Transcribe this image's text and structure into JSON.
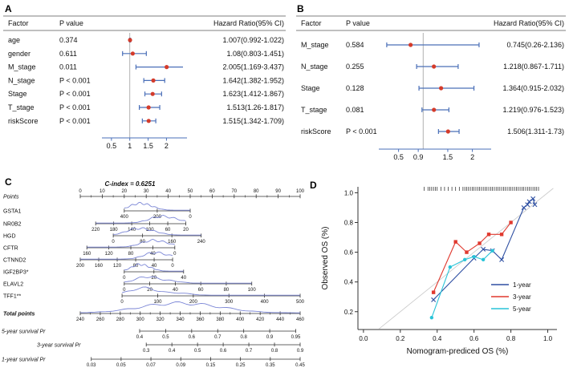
{
  "figure": {
    "panel_labels": {
      "a": "A",
      "b": "B",
      "c": "C",
      "d": "D"
    }
  },
  "style": {
    "ci_color": "#4a6fb8",
    "dot_color": "#d43b2a",
    "curve_color": "#7b86d6",
    "axis_color": "#333333",
    "ref_color": "#aaaaaa",
    "diag_color": "#cccccc"
  },
  "chart_data": [
    {
      "id": "A",
      "type": "forest",
      "columns": {
        "factor": "Factor",
        "p": "P value",
        "hr": "Hazard Ratio(95% CI)"
      },
      "rows": [
        {
          "factor": "age",
          "p": "0.374",
          "hr_text": "1.007(0.992-1.022)",
          "hr": 1.007,
          "lo": 0.992,
          "hi": 1.022
        },
        {
          "factor": "gender",
          "p": "0.611",
          "hr_text": "1.08(0.803-1.451)",
          "hr": 1.08,
          "lo": 0.803,
          "hi": 1.451
        },
        {
          "factor": "M_stage",
          "p": "0.011",
          "hr_text": "2.005(1.169-3.437)",
          "hr": 2.005,
          "lo": 1.169,
          "hi": 3.437
        },
        {
          "factor": "N_stage",
          "p": "P < 0.001",
          "hr_text": "1.642(1.382-1.952)",
          "hr": 1.642,
          "lo": 1.382,
          "hi": 1.952
        },
        {
          "factor": "Stage",
          "p": "P < 0.001",
          "hr_text": "1.623(1.412-1.867)",
          "hr": 1.623,
          "lo": 1.412,
          "hi": 1.867
        },
        {
          "factor": "T_stage",
          "p": "P < 0.001",
          "hr_text": "1.513(1.26-1.817)",
          "hr": 1.513,
          "lo": 1.26,
          "hi": 1.817
        },
        {
          "factor": "riskScore",
          "p": "P < 0.001",
          "hr_text": "1.515(1.342-1.709)",
          "hr": 1.515,
          "lo": 1.342,
          "hi": 1.709
        }
      ],
      "x_ticks": [
        {
          "label": "0.5",
          "v": 0.5
        },
        {
          "label": "1",
          "v": 1
        },
        {
          "label": "1.5",
          "v": 1.5
        },
        {
          "label": "2",
          "v": 2
        }
      ],
      "xlim": [
        0.35,
        2.45
      ],
      "ref": 1
    },
    {
      "id": "B",
      "type": "forest",
      "columns": {
        "factor": "Factor",
        "p": "P value",
        "hr": "Hazard Ratio(95% CI)"
      },
      "rows": [
        {
          "factor": "M_stage",
          "p": "0.584",
          "hr_text": "0.745(0.26-2.136)",
          "hr": 0.745,
          "lo": 0.26,
          "hi": 2.136
        },
        {
          "factor": "N_stage",
          "p": "0.255",
          "hr_text": "1.218(0.867-1.711)",
          "hr": 1.218,
          "lo": 0.867,
          "hi": 1.711
        },
        {
          "factor": "Stage",
          "p": "0.128",
          "hr_text": "1.364(0.915-2.032)",
          "hr": 1.364,
          "lo": 0.915,
          "hi": 2.032
        },
        {
          "factor": "T_stage",
          "p": "0.081",
          "hr_text": "1.219(0.976-1.523)",
          "hr": 1.219,
          "lo": 0.976,
          "hi": 1.523
        },
        {
          "factor": "riskScore",
          "p": "P < 0.001",
          "hr_text": "1.506(1.311-1.73)",
          "hr": 1.506,
          "lo": 1.311,
          "hi": 1.73
        }
      ],
      "x_ticks": [
        {
          "label": "0.5",
          "v": 0.5
        },
        {
          "label": "0.9",
          "v": 0.9
        },
        {
          "label": "1.5",
          "v": 1.5
        },
        {
          "label": "2",
          "v": 2
        }
      ],
      "xlim": [
        0.18,
        2.3
      ],
      "ref": 1
    },
    {
      "id": "C",
      "type": "nomogram",
      "title": "C-index = 0.6251",
      "rows": [
        {
          "label": "Points",
          "style": "italic",
          "x0": 0,
          "x1": 1,
          "labels_above": true,
          "minor": true,
          "ticks": [
            "0",
            "10",
            "20",
            "30",
            "40",
            "50",
            "60",
            "70",
            "80",
            "90",
            "100"
          ]
        },
        {
          "label": "GSTA1",
          "x0": 0.2,
          "x1": 0.5,
          "ticks": [
            "400",
            "200",
            "0"
          ],
          "curve": {
            "p": 0.22,
            "h": 8,
            "w": 0.2
          }
        },
        {
          "label": "NR0B2",
          "x0": 0.07,
          "x1": 0.48,
          "ticks": [
            "220",
            "180",
            "140",
            "100",
            "60",
            "20"
          ],
          "curve": {
            "p": 0.72,
            "h": 8,
            "w": 0.18
          }
        },
        {
          "label": "HGD",
          "x0": 0.15,
          "x1": 0.55,
          "ticks": [
            "0",
            "80",
            "160",
            "240"
          ],
          "curve": {
            "p": 0.28,
            "h": 8,
            "w": 0.18
          }
        },
        {
          "label": "CFTR",
          "x0": 0.03,
          "x1": 0.43,
          "ticks": [
            "160",
            "120",
            "80",
            "40",
            "0"
          ],
          "curve": {
            "p": 0.74,
            "h": 8,
            "w": 0.18
          }
        },
        {
          "label": "CTNND2",
          "x0": 0.0,
          "x1": 0.42,
          "ticks": [
            "200",
            "160",
            "120",
            "80",
            "40",
            "0"
          ],
          "curve": {
            "p": 0.8,
            "h": 8,
            "w": 0.16
          }
        },
        {
          "label": "IGF2BP3*",
          "x0": 0.2,
          "x1": 0.47,
          "ticks": [
            "0",
            "20",
            "40"
          ],
          "curve": {
            "p": 0.25,
            "h": 8,
            "w": 0.18
          }
        },
        {
          "label": "ELAVL2",
          "x0": 0.2,
          "x1": 0.78,
          "ticks": [
            "0",
            "20",
            "40",
            "60",
            "80",
            "100"
          ],
          "curve": {
            "p": 0.18,
            "h": 8,
            "w": 0.13
          }
        },
        {
          "label": "TFF1**",
          "x0": 0.19,
          "x1": 1.0,
          "ticks": [
            "0",
            "100",
            "200",
            "300",
            "400",
            "500"
          ],
          "curve": {
            "p": 0.12,
            "h": 9,
            "w": 0.11
          }
        },
        {
          "label": "Total points",
          "style": "bolditalic",
          "x0": 0,
          "x1": 1,
          "minor": true,
          "ticks": [
            "240",
            "260",
            "280",
            "300",
            "320",
            "340",
            "360",
            "380",
            "400",
            "420",
            "440",
            "460"
          ],
          "curve": {
            "p": 0.42,
            "h": 11,
            "w": 0.22
          }
        },
        {
          "label": "5-year survival Pr",
          "style": "italic",
          "label_x": 2,
          "x0": 0.27,
          "x1": 0.98,
          "ticks": [
            "0.4",
            "0.5",
            "0.6",
            "0.7",
            "0.8",
            "0.9",
            "0.95"
          ]
        },
        {
          "label": "3-year survival Pr",
          "style": "italic",
          "label_x": 46,
          "x0": 0.3,
          "x1": 1.0,
          "ticks": [
            "0.3",
            "0.4",
            "0.5",
            "0.6",
            "0.7",
            "0.8",
            "0.9"
          ]
        },
        {
          "label": "1-year survival Pr",
          "style": "italic",
          "label_x": 2,
          "x0": 0.05,
          "x1": 1.0,
          "ticks": [
            "0.03",
            "0.05",
            "0.07",
            "0.09",
            "0.15",
            "0.25",
            "0.35",
            "0.45"
          ]
        }
      ]
    },
    {
      "id": "D",
      "type": "calibration",
      "xlabel": "Nomogram-prediced OS (%)",
      "ylabel": "Observed OS (%)",
      "x_ticks": [
        {
          "label": "0.0",
          "v": 0.0
        },
        {
          "label": "0.2",
          "v": 0.2
        },
        {
          "label": "0.4",
          "v": 0.4
        },
        {
          "label": "0.6",
          "v": 0.6
        },
        {
          "label": "0.8",
          "v": 0.8
        },
        {
          "label": "1.0",
          "v": 1.0
        }
      ],
      "y_ticks": [
        {
          "label": "0.2",
          "v": 0.2
        },
        {
          "label": "0.4",
          "v": 0.4
        },
        {
          "label": "0.6",
          "v": 0.6
        },
        {
          "label": "0.8",
          "v": 0.8
        },
        {
          "label": "1.0",
          "v": 1.0
        }
      ],
      "xlim": [
        -0.03,
        1.05
      ],
      "ylim": [
        0.08,
        1.04
      ],
      "series": [
        {
          "name": "1-year",
          "color": "#2e4fa2",
          "marker": "x",
          "points": [
            [
              0.38,
              0.28
            ],
            [
              0.6,
              0.56
            ],
            [
              0.65,
              0.62
            ],
            [
              0.7,
              0.61
            ],
            [
              0.75,
              0.55
            ],
            [
              0.87,
              0.9
            ],
            [
              0.89,
              0.92
            ],
            [
              0.9,
              0.94
            ],
            [
              0.92,
              0.96
            ],
            [
              0.93,
              0.92
            ]
          ]
        },
        {
          "name": "3-year",
          "color": "#e0392f",
          "marker": "square",
          "points": [
            [
              0.38,
              0.33
            ],
            [
              0.5,
              0.67
            ],
            [
              0.56,
              0.6
            ],
            [
              0.63,
              0.66
            ],
            [
              0.68,
              0.72
            ],
            [
              0.75,
              0.72
            ],
            [
              0.8,
              0.8
            ]
          ]
        },
        {
          "name": "5-year",
          "color": "#28c4d8",
          "marker": "circle",
          "points": [
            [
              0.37,
              0.16
            ],
            [
              0.47,
              0.5
            ],
            [
              0.55,
              0.55
            ],
            [
              0.6,
              0.57
            ],
            [
              0.65,
              0.55
            ],
            [
              0.7,
              0.61
            ]
          ]
        }
      ],
      "rug_x": [
        0.33,
        0.35,
        0.36,
        0.37,
        0.38,
        0.39,
        0.4,
        0.42,
        0.44,
        0.46,
        0.48,
        0.5,
        0.52,
        0.54,
        0.55,
        0.56,
        0.57,
        0.58,
        0.59,
        0.6,
        0.61,
        0.62,
        0.63,
        0.64,
        0.65,
        0.66,
        0.67,
        0.68,
        0.69,
        0.7,
        0.71,
        0.72,
        0.73,
        0.74,
        0.75,
        0.76,
        0.77,
        0.78,
        0.79,
        0.8,
        0.81,
        0.82,
        0.83,
        0.84,
        0.85,
        0.86,
        0.87,
        0.88,
        0.89,
        0.9,
        0.91,
        0.92,
        0.93,
        0.94,
        0.95
      ]
    }
  ]
}
